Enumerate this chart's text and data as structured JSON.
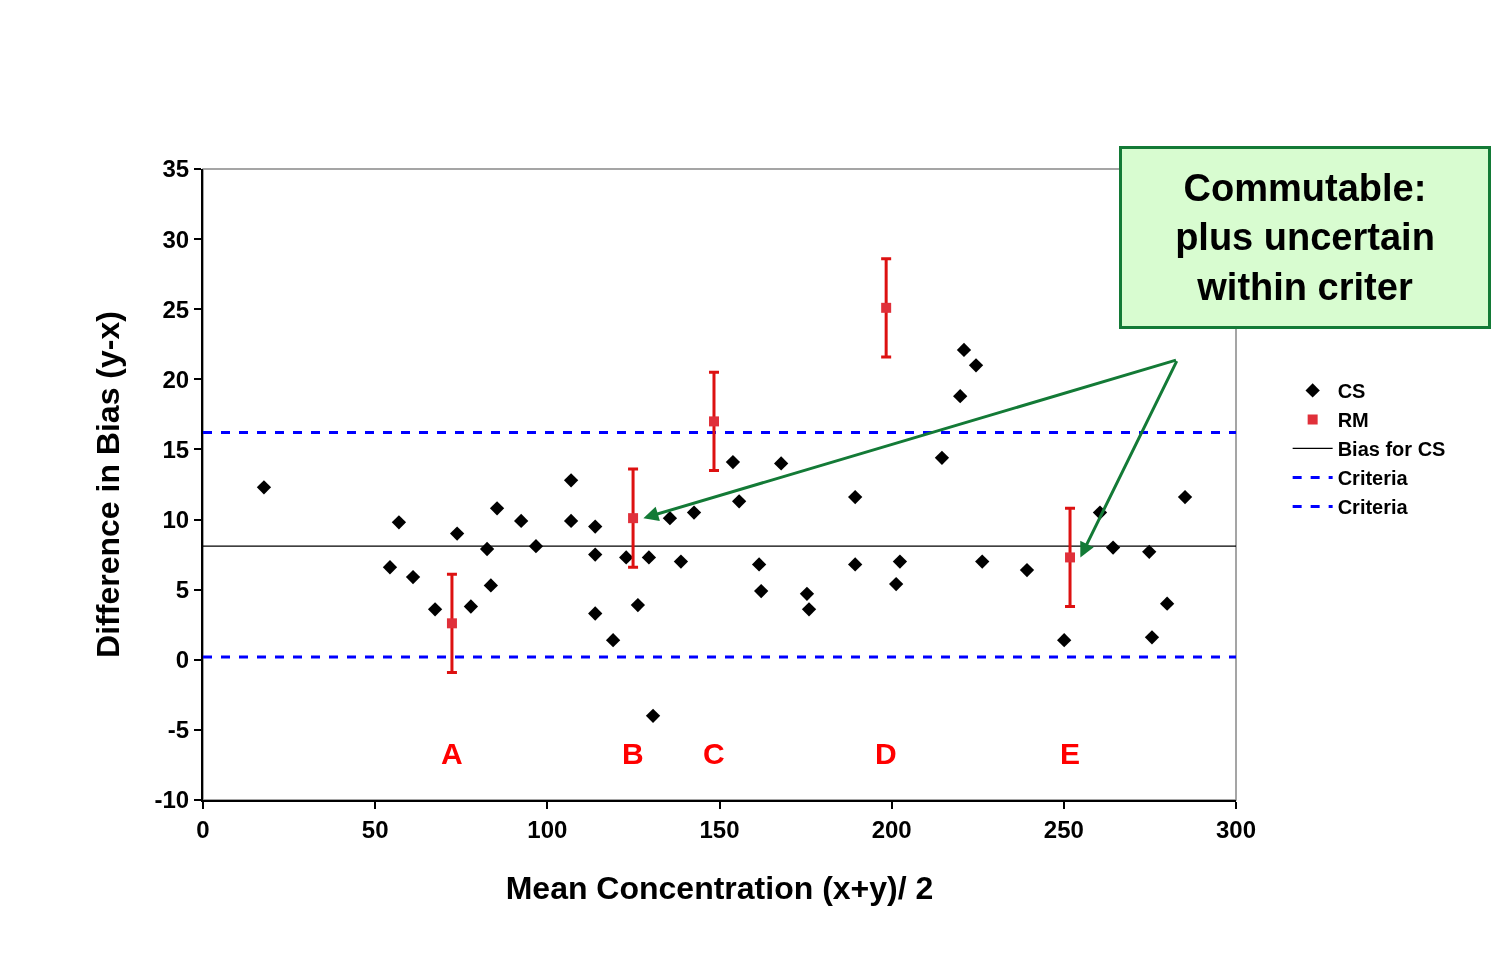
{
  "chart_data": {
    "type": "scatter",
    "xlabel": "Mean Concentration (x+y)/ 2",
    "ylabel": "Difference in Bias (y-x)",
    "xlim": [
      0,
      300
    ],
    "xticks": [
      0,
      50,
      100,
      150,
      200,
      250,
      300
    ],
    "ylim": [
      -10,
      35
    ],
    "yticks": [
      -10,
      -5,
      0,
      5,
      10,
      15,
      20,
      25,
      30,
      35
    ],
    "grid": false,
    "legend": "right",
    "series": [
      {
        "name": "CS",
        "color": "#000000",
        "marker": "diamond",
        "x": [
          17.7,
          54.3,
          56.9,
          61.0,
          67.4,
          73.8,
          77.8,
          82.5,
          83.6,
          85.4,
          92.4,
          96.7,
          106.9,
          106.9,
          113.9,
          113.9,
          113.9,
          119.1,
          122.9,
          126.3,
          129.5,
          130.7,
          135.6,
          138.8,
          142.6,
          153.9,
          155.7,
          161.5,
          162.1,
          167.9,
          175.4,
          176.0,
          189.4,
          189.4,
          201.3,
          202.4,
          214.6,
          219.9,
          221.0,
          224.5,
          226.3,
          239.3,
          250.1,
          260.5,
          264.3,
          274.8,
          275.6,
          280.0,
          285.2
        ],
        "values": [
          12.3,
          6.6,
          9.8,
          5.9,
          3.6,
          9.0,
          3.8,
          7.9,
          5.3,
          10.8,
          9.9,
          8.1,
          12.8,
          9.9,
          9.5,
          7.5,
          3.3,
          1.4,
          7.3,
          3.9,
          7.3,
          -4.0,
          10.1,
          7.0,
          10.5,
          14.1,
          11.3,
          6.8,
          4.9,
          14.0,
          4.7,
          3.6,
          11.6,
          6.8,
          5.4,
          7.0,
          14.4,
          18.8,
          22.1,
          21.0,
          7.0,
          6.4,
          1.4,
          10.5,
          8.0,
          7.7,
          1.6,
          4.0,
          11.6
        ]
      },
      {
        "name": "RM",
        "color": "#e0303a",
        "marker": "square",
        "x": [
          72.3,
          124.9,
          148.4,
          198.4,
          251.8
        ],
        "values": [
          2.6,
          10.1,
          17.0,
          25.1,
          7.3
        ],
        "errors": [
          3.5,
          3.5,
          3.5,
          3.5,
          3.5
        ]
      }
    ],
    "ref_lines": [
      {
        "axis": "y",
        "value": 8.1,
        "label": "Bias for CS",
        "color": "#000000",
        "line_style": "solid"
      },
      {
        "axis": "y",
        "value": 16.2,
        "label": "Criteria",
        "color": "#0000ff",
        "line_style": "dashed"
      },
      {
        "axis": "y",
        "value": 0.2,
        "label": "Criteria",
        "color": "#0000ff",
        "line_style": "dashed"
      }
    ],
    "annotations": [
      "A",
      "B",
      "C",
      "D",
      "E",
      "Commutable:\nplus uncertain\nwithin criter"
    ]
  }
}
